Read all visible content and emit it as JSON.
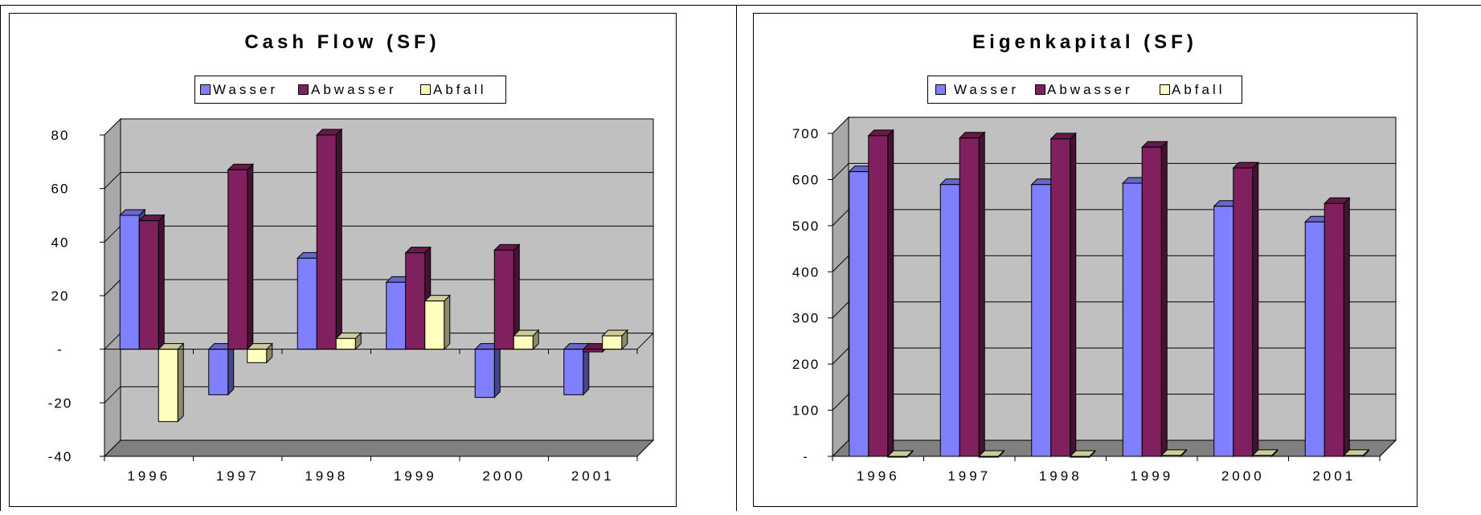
{
  "colors": {
    "wasser": "#8080FF",
    "abwasser": "#80205E",
    "abfall": "#FFFFC0",
    "plot_back": "#C0C0C0",
    "plot_floor": "#808080"
  },
  "chart_data": [
    {
      "type": "bar",
      "title": "Cash Flow (SF)",
      "categories": [
        "1996",
        "1997",
        "1998",
        "1999",
        "2000",
        "2001"
      ],
      "series": [
        {
          "name": "Wasser",
          "values": [
            50,
            -17,
            34,
            25,
            -18,
            -17
          ]
        },
        {
          "name": "Abwasser",
          "values": [
            48,
            67,
            80,
            36,
            37,
            -1
          ]
        },
        {
          "name": "Abfall",
          "values": [
            -27,
            -5,
            4,
            18,
            5,
            5
          ]
        }
      ],
      "yticks": [
        "80",
        "60",
        "40",
        "20",
        "-",
        "-20",
        "-40"
      ],
      "ylim": [
        -40,
        80
      ],
      "legend": "top-center",
      "grid": true
    },
    {
      "type": "bar",
      "title": "Eigenkapital (SF)",
      "categories": [
        "1996",
        "1997",
        "1998",
        "1999",
        "2000",
        "2001"
      ],
      "series": [
        {
          "name": "Wasser",
          "values": [
            617,
            589,
            589,
            592,
            542,
            508
          ]
        },
        {
          "name": "Abwasser",
          "values": [
            695,
            690,
            688,
            670,
            625,
            548
          ]
        },
        {
          "name": "Abfall",
          "values": [
            0,
            0,
            0,
            2,
            2,
            2
          ]
        }
      ],
      "yticks": [
        "700",
        "600",
        "500",
        "400",
        "300",
        "200",
        "100",
        "-"
      ],
      "ylim": [
        0,
        700
      ],
      "legend": "top-center",
      "grid": true
    }
  ]
}
